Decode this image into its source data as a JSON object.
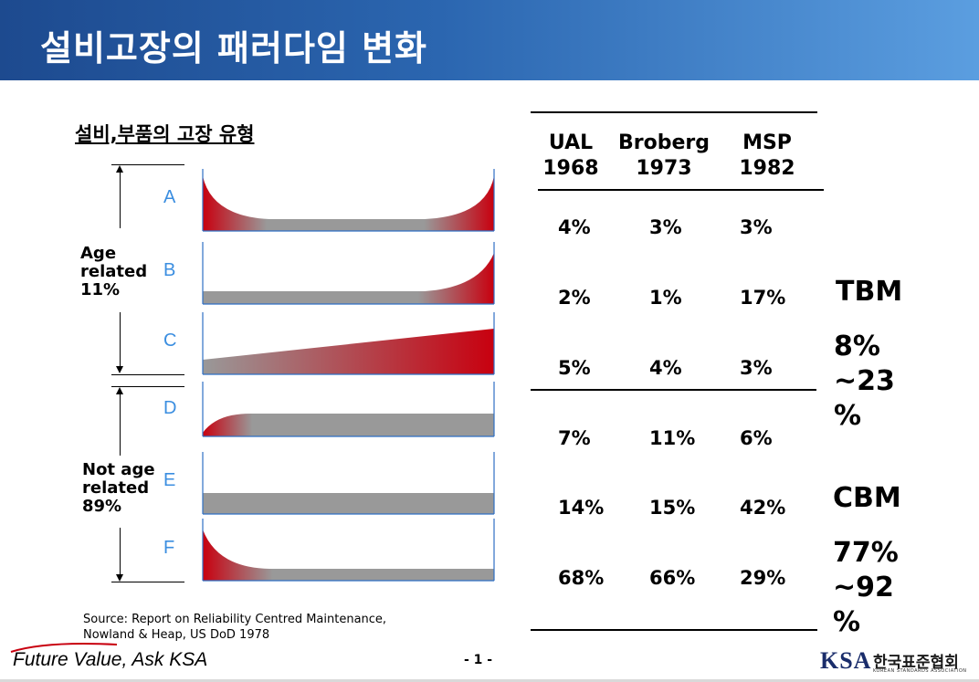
{
  "slide": {
    "title": "설비고장의 패러다임 변화"
  },
  "failure_patterns": {
    "heading": "설비,부품의 고장 유형",
    "groups": [
      {
        "line1": "Age",
        "line2": "related",
        "line3": "11%"
      },
      {
        "line1": "Not age",
        "line2": "related",
        "line3": "89%"
      }
    ],
    "curves": [
      "A",
      "B",
      "C",
      "D",
      "E",
      "F"
    ],
    "colors": {
      "red": "#c8000f",
      "gray": "#999999",
      "letter": "#3b8ee0",
      "axis": "#2e6fc4"
    }
  },
  "source": {
    "line1": "Source: Report on Reliability Centred Maintenance,",
    "line2": "Nowland & Heap, US DoD 1978"
  },
  "study_table": {
    "columns": [
      {
        "name": "UAL",
        "year": "1968"
      },
      {
        "name": "Broberg",
        "year": "1973"
      },
      {
        "name": "MSP",
        "year": "1982"
      }
    ],
    "rows": [
      [
        "4%",
        "3%",
        "3%"
      ],
      [
        "2%",
        "1%",
        "17%"
      ],
      [
        "5%",
        "4%",
        "3%"
      ],
      [
        "7%",
        "11%",
        "6%"
      ],
      [
        "14%",
        "15%",
        "42%"
      ],
      [
        "68%",
        "66%",
        "29%"
      ]
    ]
  },
  "summary": {
    "tbm": {
      "label": "TBM",
      "line1": "8%",
      "line2": "~23",
      "line3": "%"
    },
    "cbm": {
      "label": "CBM",
      "line1": "77%",
      "line2": "~92",
      "line3": "%"
    }
  },
  "footer": {
    "slogan": "Future Value, Ask KSA",
    "page": "- 1 -",
    "logo_letters": "KSA",
    "logo_korean": "한국표준협회",
    "logo_english": "KOREAN STANDARDS ASSOCIATION"
  }
}
